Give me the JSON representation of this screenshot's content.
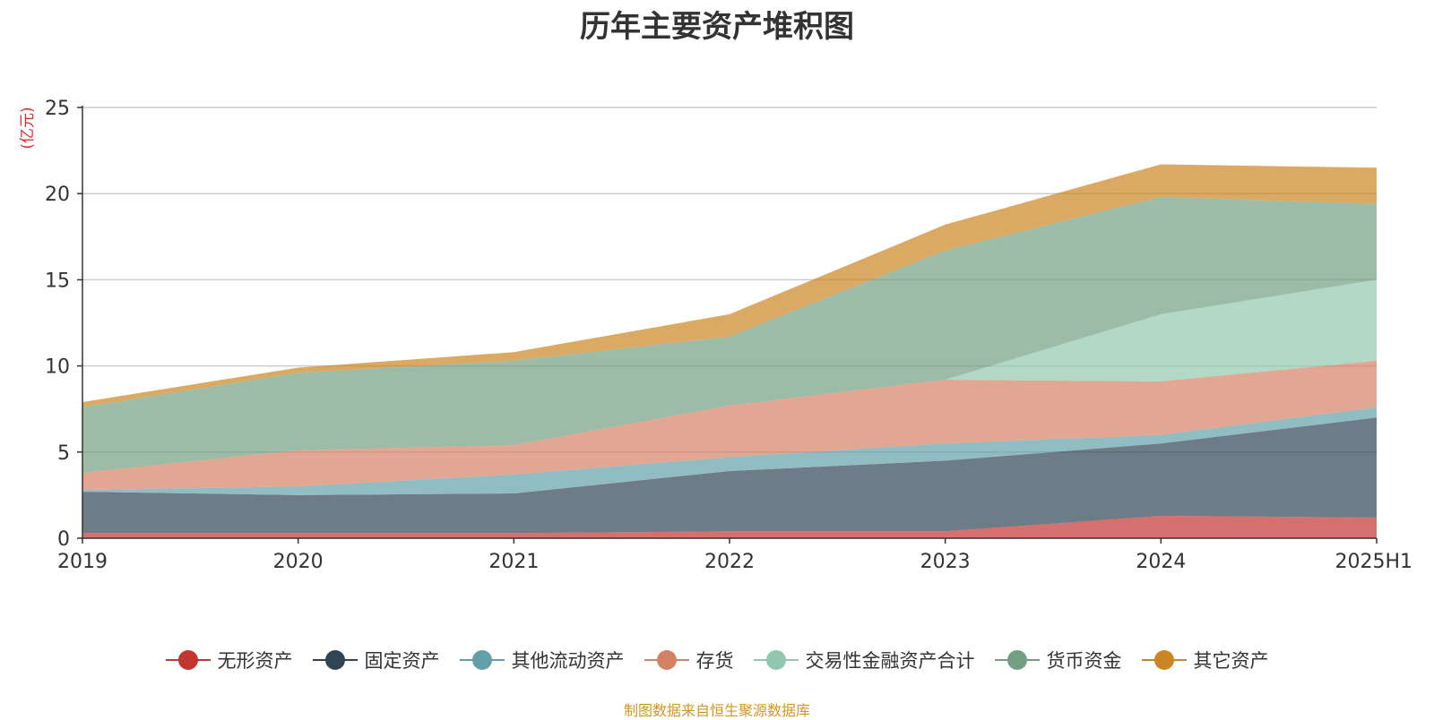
{
  "chart_data": {
    "type": "area",
    "stacked": true,
    "title": "历年主要资产堆积图",
    "ylabel": "(亿元)",
    "xlabel": "",
    "categories": [
      "2019",
      "2020",
      "2021",
      "2022",
      "2023",
      "2024",
      "2025H1"
    ],
    "ylim": [
      0,
      25
    ],
    "yticks": [
      0,
      5,
      10,
      15,
      20,
      25
    ],
    "grid": true,
    "legend_position": "bottom",
    "series": [
      {
        "name": "无形资产",
        "color": "#c23531",
        "values": [
          0.3,
          0.3,
          0.3,
          0.4,
          0.4,
          1.3,
          1.2
        ]
      },
      {
        "name": "固定资产",
        "color": "#2f4554",
        "values": [
          2.4,
          2.2,
          2.3,
          3.5,
          4.1,
          4.2,
          5.8
        ]
      },
      {
        "name": "其他流动资产",
        "color": "#61a0a8",
        "values": [
          0.1,
          0.5,
          1.1,
          0.8,
          1.0,
          0.5,
          0.6
        ]
      },
      {
        "name": "存货",
        "color": "#d48265",
        "values": [
          1.0,
          2.1,
          1.7,
          3.0,
          3.7,
          3.1,
          2.7
        ]
      },
      {
        "name": "交易性金融资产合计",
        "color": "#91c7ae",
        "values": [
          0.0,
          0.0,
          0.0,
          0.0,
          0.0,
          3.9,
          4.7
        ]
      },
      {
        "name": "货币资金",
        "color": "#749f83",
        "values": [
          3.8,
          4.5,
          4.9,
          4.0,
          7.5,
          6.8,
          4.4
        ]
      },
      {
        "name": "其它资产",
        "color": "#ca8622",
        "values": [
          0.3,
          0.3,
          0.5,
          1.3,
          1.5,
          1.9,
          2.1
        ]
      }
    ]
  },
  "source_note": "制图数据来自恒生聚源数据库"
}
